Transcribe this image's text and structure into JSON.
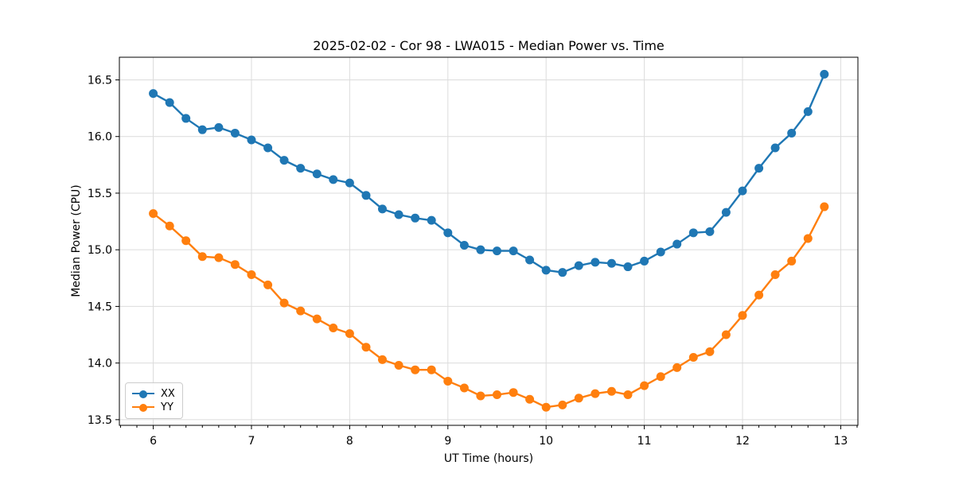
{
  "chart_data": {
    "type": "line",
    "title": "2025-02-02 - Cor 98 - LWA015 - Median Power vs. Time",
    "xlabel": "UT Time (hours)",
    "ylabel": "Median Power (CPU)",
    "legend_position": "lower left",
    "grid": true,
    "xlim": [
      5.655,
      13.175
    ],
    "ylim": [
      13.45,
      16.7
    ],
    "xticks": [
      6,
      7,
      8,
      9,
      10,
      11,
      12,
      13
    ],
    "yticks": [
      13.5,
      14.0,
      14.5,
      15.0,
      15.5,
      16.0,
      16.5
    ],
    "minor_xtick_step": 0.166667,
    "colors": {
      "grid": "#dcdcdc",
      "spine": "#000000",
      "text": "#000000"
    },
    "x": [
      6.0,
      6.167,
      6.333,
      6.5,
      6.667,
      6.833,
      7.0,
      7.167,
      7.333,
      7.5,
      7.667,
      7.833,
      8.0,
      8.167,
      8.333,
      8.5,
      8.667,
      8.833,
      9.0,
      9.167,
      9.333,
      9.5,
      9.667,
      9.833,
      10.0,
      10.167,
      10.333,
      10.5,
      10.667,
      10.833,
      11.0,
      11.167,
      11.333,
      11.5,
      11.667,
      11.833,
      12.0,
      12.167,
      12.333,
      12.5,
      12.667,
      12.833
    ],
    "series": [
      {
        "name": "XX",
        "color": "#1f77b4",
        "values": [
          16.38,
          16.3,
          16.16,
          16.06,
          16.08,
          16.03,
          15.97,
          15.9,
          15.79,
          15.72,
          15.67,
          15.62,
          15.59,
          15.48,
          15.36,
          15.31,
          15.28,
          15.26,
          15.15,
          15.04,
          15.0,
          14.99,
          14.99,
          14.91,
          14.82,
          14.8,
          14.86,
          14.89,
          14.88,
          14.85,
          14.9,
          14.98,
          15.05,
          15.15,
          15.16,
          15.33,
          15.52,
          15.72,
          15.9,
          16.03,
          16.22,
          16.55
        ]
      },
      {
        "name": "YY",
        "color": "#ff7f0e",
        "values": [
          15.32,
          15.21,
          15.08,
          14.94,
          14.93,
          14.87,
          14.78,
          14.69,
          14.53,
          14.46,
          14.39,
          14.31,
          14.26,
          14.14,
          14.03,
          13.98,
          13.94,
          13.94,
          13.84,
          13.78,
          13.71,
          13.72,
          13.74,
          13.68,
          13.61,
          13.63,
          13.69,
          13.73,
          13.75,
          13.72,
          13.8,
          13.88,
          13.96,
          14.05,
          14.1,
          14.25,
          14.42,
          14.6,
          14.78,
          14.9,
          15.1,
          15.38
        ]
      }
    ],
    "marker_radius": 5.5,
    "line_width": 2.4
  }
}
